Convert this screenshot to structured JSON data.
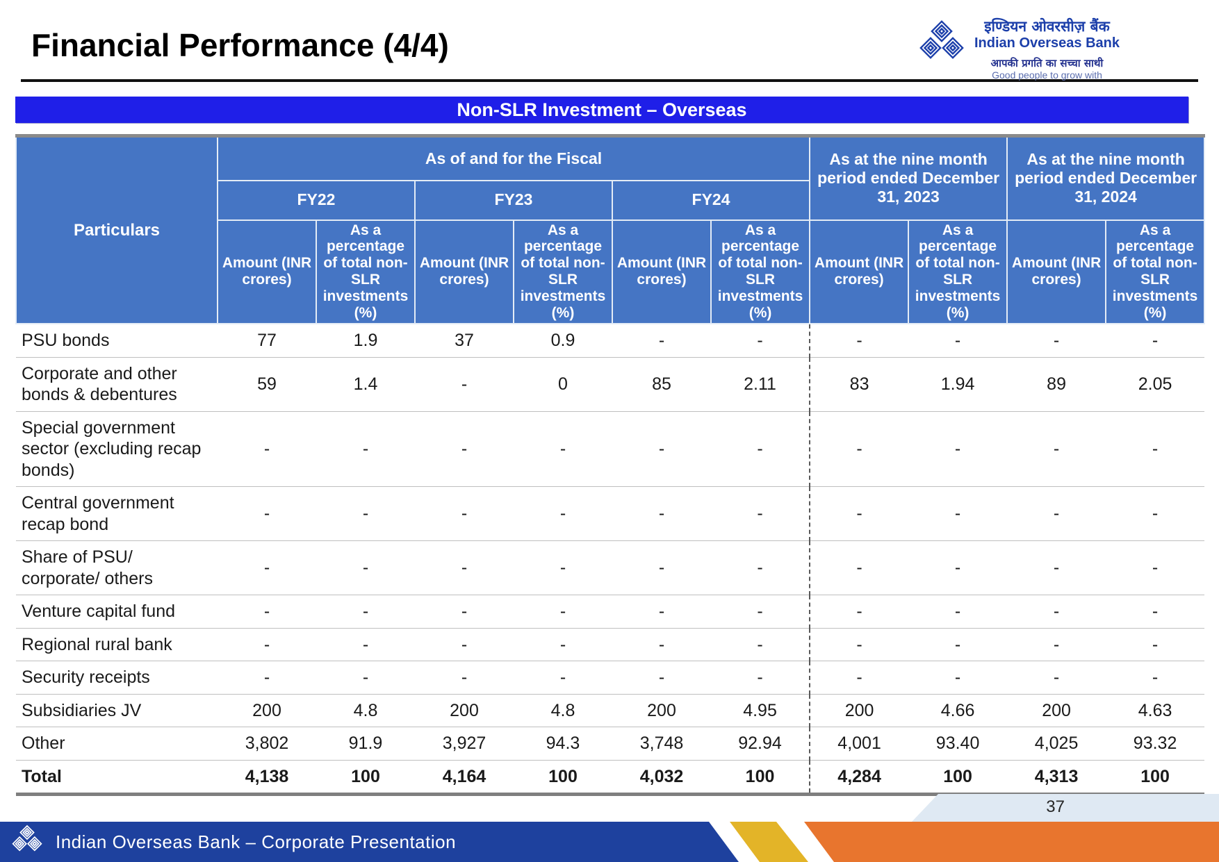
{
  "slide": {
    "title": "Financial Performance (4/4)",
    "page_number": "37",
    "banner_text": "Non-SLR Investment – Overseas",
    "footer_text": "Indian Overseas Bank – Corporate Presentation"
  },
  "logo": {
    "name_hindi": "इण्डियन ओवरसीज़ बैंक",
    "name_english": "Indian Overseas Bank",
    "tagline_hindi": "आपकी प्रगति का सच्चा साथी",
    "tagline_english": "Good people to grow with"
  },
  "colors": {
    "banner_blue": "#1f1fe8",
    "table_header_blue": "#4575c4",
    "footer_navy": "#1e419e",
    "footer_gold": "#e3b428",
    "footer_orange": "#e8752e",
    "light_band": "#dfe9f3"
  },
  "table": {
    "corner_header": "Particulars",
    "fiscal_group_header": "As of and for the Fiscal",
    "period_groups": [
      "FY22",
      "FY23",
      "FY24",
      "As at the nine month period ended December 31, 2023",
      "As at the nine month period ended December 31, 2024"
    ],
    "amount_subheader": "Amount (INR crores)",
    "pct_subheader": "As a percentage of total non-SLR investments (%)",
    "rows": [
      {
        "label": "PSU bonds",
        "values": [
          "77",
          "1.9",
          "37",
          "0.9",
          "-",
          "-",
          "-",
          "-",
          "-",
          "-"
        ]
      },
      {
        "label": "Corporate and other bonds & debentures",
        "values": [
          "59",
          "1.4",
          "-",
          "0",
          "85",
          "2.11",
          "83",
          "1.94",
          "89",
          "2.05"
        ]
      },
      {
        "label": "Special government sector (excluding recap bonds)",
        "values": [
          "-",
          "-",
          "-",
          "-",
          "-",
          "-",
          "-",
          "-",
          "-",
          "-"
        ]
      },
      {
        "label": "Central government recap bond",
        "values": [
          "-",
          "-",
          "-",
          "-",
          "-",
          "-",
          "-",
          "-",
          "-",
          "-"
        ]
      },
      {
        "label": "Share of PSU/ corporate/ others",
        "values": [
          "-",
          "-",
          "-",
          "-",
          "-",
          "-",
          "-",
          "-",
          "-",
          "-"
        ]
      },
      {
        "label": "Venture capital fund",
        "values": [
          "-",
          "-",
          "-",
          "-",
          "-",
          "-",
          "-",
          "-",
          "-",
          "-"
        ]
      },
      {
        "label": "Regional rural bank",
        "values": [
          "-",
          "-",
          "-",
          "-",
          "-",
          "-",
          "-",
          "-",
          "-",
          "-"
        ]
      },
      {
        "label": "Security receipts",
        "values": [
          "-",
          "-",
          "-",
          "-",
          "-",
          "-",
          "-",
          "-",
          "-",
          "-"
        ]
      },
      {
        "label": "Subsidiaries JV",
        "values": [
          "200",
          "4.8",
          "200",
          "4.8",
          "200",
          "4.95",
          "200",
          "4.66",
          "200",
          "4.63"
        ]
      },
      {
        "label": "Other",
        "values": [
          "3,802",
          "91.9",
          "3,927",
          "94.3",
          "3,748",
          "92.94",
          "4,001",
          "93.40",
          "4,025",
          "93.32"
        ]
      },
      {
        "label": "Total",
        "bold": true,
        "values": [
          "4,138",
          "100",
          "4,164",
          "100",
          "4,032",
          "100",
          "4,284",
          "100",
          "4,313",
          "100"
        ]
      }
    ]
  }
}
